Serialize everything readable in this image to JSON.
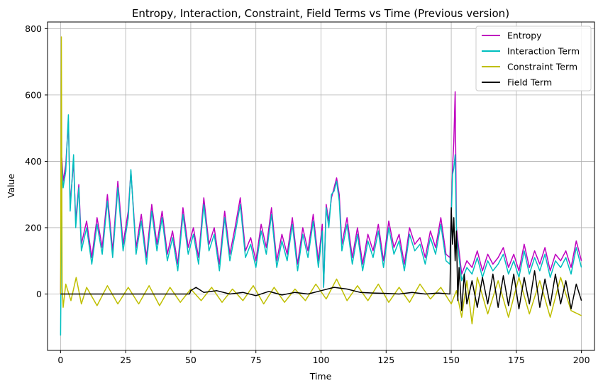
{
  "chart_data": {
    "type": "line",
    "title": "Entropy, Interaction, Constraint, Field Terms vs Time (Previous version)",
    "xlabel": "Time",
    "ylabel": "Value",
    "xlim": [
      -5,
      205
    ],
    "ylim": [
      -170,
      820
    ],
    "xticks": [
      0,
      25,
      50,
      75,
      100,
      125,
      150,
      175,
      200
    ],
    "yticks": [
      0,
      200,
      400,
      600,
      800
    ],
    "grid": true,
    "legend_position": "top-right",
    "series": [
      {
        "name": "Entropy",
        "color": "#bf00bf",
        "x": [
          0,
          0.5,
          1,
          2,
          3,
          3.7,
          5,
          5.8,
          7,
          8,
          10,
          12,
          14,
          16,
          18,
          20,
          22,
          24,
          26,
          27,
          29,
          31,
          33,
          35,
          37,
          39,
          41,
          43,
          45,
          47,
          49,
          51,
          53,
          55,
          57,
          59,
          61,
          63,
          65,
          67,
          69,
          71,
          73,
          75,
          77,
          79,
          81,
          83,
          85,
          87,
          89,
          91,
          93,
          95,
          97,
          99,
          100.5,
          101,
          102,
          103,
          104,
          105,
          106,
          107,
          108,
          110,
          112,
          114,
          116,
          118,
          120,
          122,
          124,
          126,
          128,
          130,
          132,
          134,
          136,
          138,
          140,
          142,
          144,
          146,
          148,
          149.5,
          150.5,
          151,
          151.5,
          152,
          153,
          154,
          156,
          158,
          160,
          162,
          164,
          166,
          168,
          170,
          172,
          174,
          176,
          178,
          180,
          182,
          184,
          186,
          188,
          190,
          192,
          194,
          196,
          198,
          200
        ],
        "values": [
          0,
          410,
          340,
          390,
          520,
          270,
          400,
          220,
          330,
          150,
          220,
          110,
          230,
          140,
          300,
          130,
          340,
          150,
          250,
          370,
          140,
          240,
          110,
          270,
          150,
          250,
          120,
          190,
          90,
          260,
          140,
          200,
          110,
          290,
          150,
          200,
          90,
          250,
          120,
          200,
          290,
          130,
          170,
          100,
          210,
          140,
          260,
          100,
          180,
          120,
          230,
          90,
          200,
          130,
          240,
          100,
          210,
          20,
          270,
          220,
          290,
          320,
          350,
          300,
          150,
          230,
          110,
          200,
          90,
          180,
          130,
          210,
          100,
          220,
          140,
          180,
          90,
          200,
          150,
          170,
          110,
          190,
          140,
          230,
          120,
          110,
          380,
          460,
          610,
          200,
          130,
          60,
          100,
          80,
          130,
          70,
          120,
          90,
          110,
          140,
          80,
          120,
          70,
          150,
          80,
          130,
          90,
          140,
          70,
          120,
          100,
          130,
          80,
          160,
          100
        ]
      },
      {
        "name": "Interaction Term",
        "color": "#00bfbf",
        "x": [
          0,
          0.5,
          1,
          2,
          3,
          3.7,
          5,
          5.8,
          7,
          8,
          10,
          12,
          14,
          16,
          18,
          20,
          22,
          24,
          26,
          27,
          29,
          31,
          33,
          35,
          37,
          39,
          41,
          43,
          45,
          47,
          49,
          51,
          53,
          55,
          57,
          59,
          61,
          63,
          65,
          67,
          69,
          71,
          73,
          75,
          77,
          79,
          81,
          83,
          85,
          87,
          89,
          91,
          93,
          95,
          97,
          99,
          100.5,
          101,
          102,
          103,
          104,
          105,
          106,
          107,
          108,
          110,
          112,
          114,
          116,
          118,
          120,
          122,
          124,
          126,
          128,
          130,
          132,
          134,
          136,
          138,
          140,
          142,
          144,
          146,
          148,
          149.5,
          150.5,
          151,
          151.5,
          152,
          153,
          154,
          156,
          158,
          160,
          162,
          164,
          166,
          168,
          170,
          172,
          174,
          176,
          178,
          180,
          182,
          184,
          186,
          188,
          190,
          192,
          194,
          196,
          198,
          200
        ],
        "values": [
          -125,
          390,
          320,
          370,
          540,
          250,
          420,
          200,
          320,
          130,
          200,
          90,
          210,
          120,
          280,
          110,
          320,
          130,
          230,
          375,
          120,
          220,
          90,
          250,
          130,
          230,
          100,
          170,
          70,
          240,
          120,
          180,
          90,
          270,
          130,
          180,
          70,
          230,
          100,
          180,
          270,
          110,
          150,
          80,
          190,
          120,
          240,
          80,
          160,
          100,
          210,
          70,
          180,
          110,
          220,
          80,
          190,
          20,
          260,
          200,
          300,
          310,
          340,
          280,
          130,
          210,
          90,
          180,
          70,
          160,
          110,
          190,
          80,
          200,
          120,
          160,
          70,
          180,
          130,
          150,
          90,
          170,
          120,
          210,
          100,
          90,
          360,
          380,
          420,
          180,
          110,
          40,
          80,
          60,
          110,
          50,
          100,
          70,
          90,
          120,
          60,
          100,
          50,
          130,
          60,
          110,
          70,
          120,
          50,
          100,
          80,
          110,
          60,
          140,
          80
        ]
      },
      {
        "name": "Constraint Term",
        "color": "#bfbf00",
        "x": [
          0,
          0.3,
          0.6,
          1,
          2,
          4,
          6,
          8,
          10,
          14,
          18,
          22,
          26,
          30,
          34,
          38,
          42,
          46,
          50,
          54,
          58,
          62,
          66,
          70,
          74,
          78,
          82,
          86,
          90,
          94,
          98,
          102,
          106,
          110,
          114,
          118,
          122,
          126,
          130,
          134,
          138,
          142,
          146,
          150,
          152,
          154,
          156,
          158,
          160,
          164,
          168,
          172,
          176,
          180,
          184,
          188,
          192,
          196,
          200
        ],
        "values": [
          0,
          775,
          20,
          -40,
          30,
          -20,
          50,
          -30,
          20,
          -35,
          25,
          -30,
          20,
          -30,
          25,
          -35,
          20,
          -25,
          15,
          -20,
          20,
          -25,
          15,
          -20,
          25,
          -30,
          20,
          -25,
          15,
          -20,
          30,
          -15,
          45,
          -20,
          25,
          -20,
          30,
          -25,
          20,
          -25,
          30,
          -15,
          20,
          -30,
          10,
          -70,
          40,
          -90,
          50,
          -60,
          40,
          -70,
          50,
          -60,
          40,
          -70,
          50,
          -50,
          -65
        ]
      },
      {
        "name": "Field Term",
        "color": "#000000",
        "x": [
          0,
          10,
          20,
          30,
          40,
          49.5,
          50,
          52,
          55,
          60,
          65,
          70,
          75,
          80,
          85,
          90,
          95,
          100,
          105,
          110,
          115,
          120,
          125,
          130,
          135,
          140,
          145,
          149.5,
          150,
          150.5,
          151,
          151.5,
          152,
          152.5,
          153,
          154,
          155,
          156,
          158,
          160,
          162,
          164,
          166,
          168,
          170,
          172,
          174,
          176,
          178,
          180,
          182,
          184,
          186,
          188,
          190,
          192,
          194,
          196,
          198,
          200
        ],
        "values": [
          0,
          0,
          0,
          0,
          0,
          0,
          10,
          20,
          5,
          10,
          0,
          5,
          -5,
          8,
          -3,
          5,
          0,
          10,
          20,
          15,
          5,
          3,
          2,
          0,
          5,
          0,
          3,
          0,
          260,
          150,
          230,
          100,
          190,
          -20,
          80,
          -50,
          60,
          -30,
          40,
          -40,
          50,
          -30,
          60,
          -40,
          55,
          -35,
          60,
          -45,
          50,
          -30,
          70,
          -40,
          45,
          -35,
          60,
          -30,
          40,
          -45,
          30,
          -20
        ]
      }
    ]
  }
}
